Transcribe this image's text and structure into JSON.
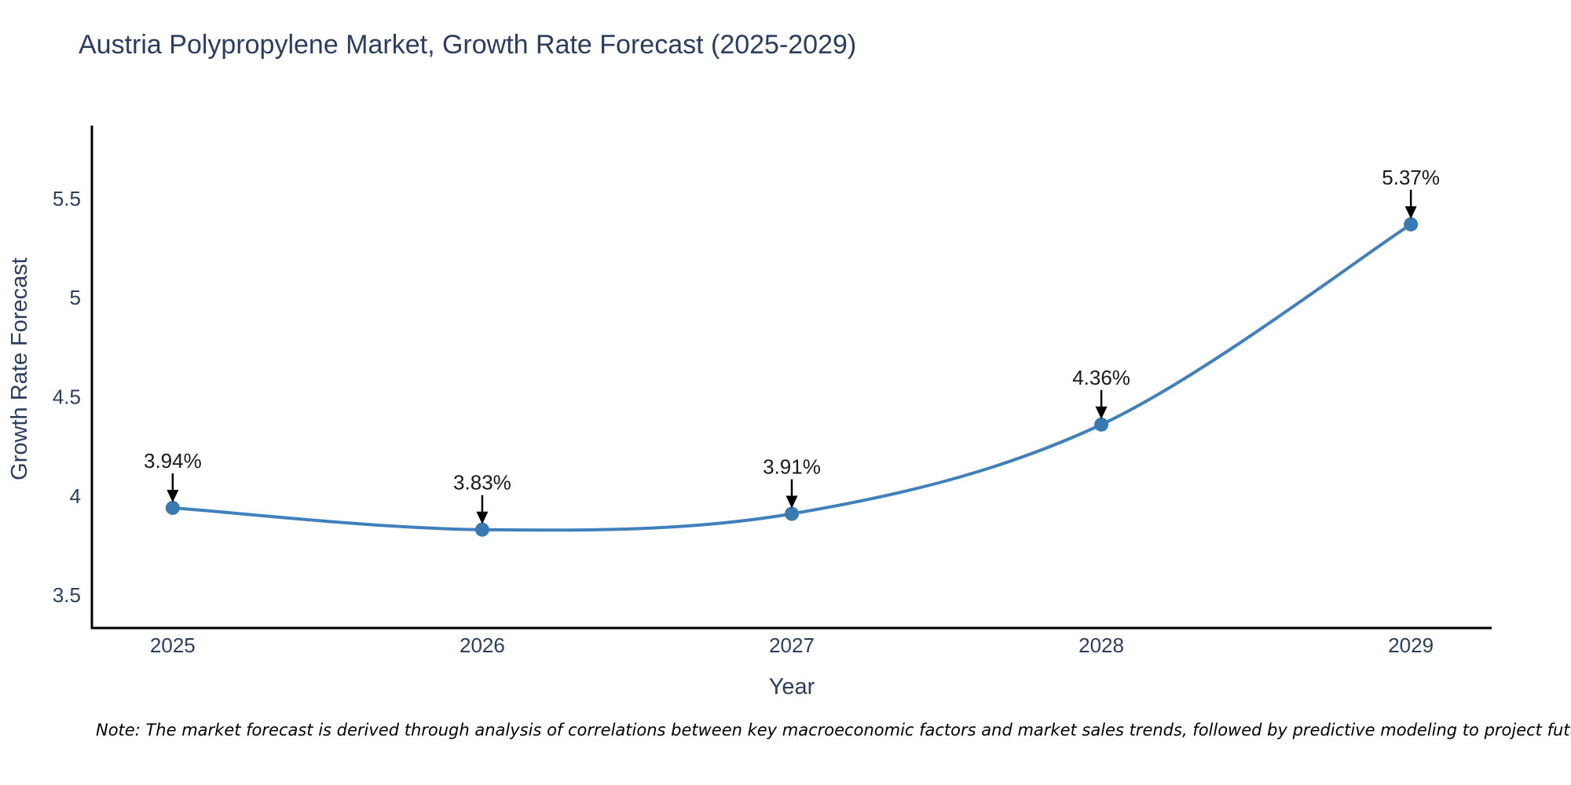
{
  "title": "Austria Polypropylene Market, Growth Rate Forecast (2025-2029)",
  "note": "Note: The market forecast is derived through analysis of correlations between key macroeconomic factors and market sales trends, followed by predictive modeling to project future sales",
  "colors": {
    "line": "#4080bd",
    "marker": "#3a7ab3",
    "axis": "#000000",
    "text": "#2a3f5f",
    "annotation": "#1a1a1a"
  },
  "chart_data": {
    "type": "line",
    "title": "Austria Polypropylene Market, Growth Rate Forecast (2025-2029)",
    "x": [
      2025,
      2026,
      2027,
      2028,
      2029
    ],
    "series": [
      {
        "name": "Growth Rate Forecast",
        "values": [
          3.94,
          3.83,
          3.91,
          4.36,
          5.37
        ]
      }
    ],
    "point_labels": [
      "3.94%",
      "3.83%",
      "3.91%",
      "4.36%",
      "5.37%"
    ],
    "xlabel": "Year",
    "ylabel": "Growth Rate Forecast",
    "xtick_labels": [
      "2025",
      "2026",
      "2027",
      "2028",
      "2029"
    ],
    "ytick_values": [
      3.5,
      4,
      4.5,
      5,
      5.5
    ],
    "ytick_labels": [
      "3.5",
      "4",
      "4.5",
      "5",
      "5.5"
    ],
    "xlim": [
      2024.739,
      2029.261
    ],
    "ylim": [
      3.334,
      5.868
    ],
    "grid": false,
    "legend_position": "none",
    "line_shape": "spline",
    "annotations": "value labels with down arrows above each point"
  }
}
